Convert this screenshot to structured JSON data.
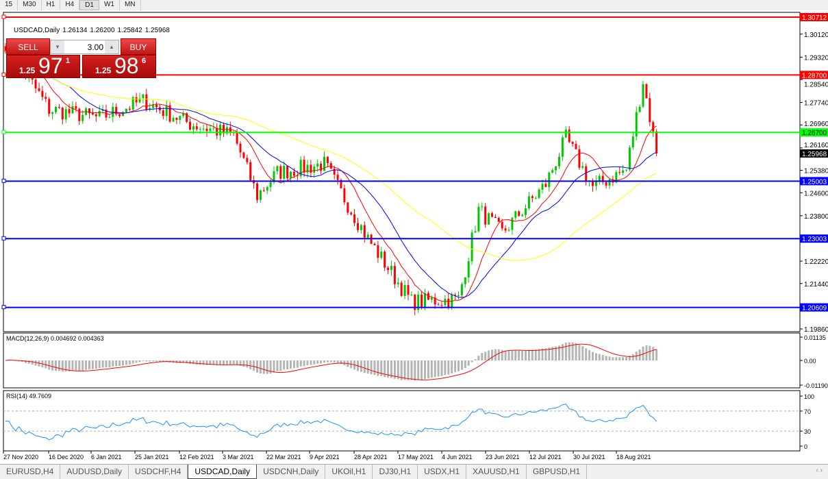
{
  "toolbar": {
    "timeframes": [
      {
        "label": "15"
      },
      {
        "label": "M30"
      },
      {
        "label": "H1"
      },
      {
        "label": "H4"
      },
      {
        "label": "D1",
        "active": true
      },
      {
        "label": "W1"
      },
      {
        "label": "MN"
      }
    ]
  },
  "chart": {
    "symbol": "USDCAD,Daily",
    "open": "1.26134",
    "high": "1.26200",
    "low": "1.25842",
    "close": "1.25968",
    "current_price": "1.25968",
    "price_axis": [
      "1.30120",
      "1.29320",
      "1.28540",
      "1.27740",
      "1.26960",
      "1.26160",
      "1.25380",
      "1.24600",
      "1.23800",
      "1.22220",
      "1.21440",
      "1.19860"
    ],
    "date_axis": [
      "27 Nov 2020",
      "16 Dec 2020",
      "6 Jan 2021",
      "25 Jan 2021",
      "12 Feb 2021",
      "3 Mar 2021",
      "22 Mar 2021",
      "9 Apr 2021",
      "28 Apr 2021",
      "17 May 2021",
      "4 Jun 2021",
      "23 Jun 2021",
      "12 Jul 2021",
      "30 Jul 2021",
      "18 Aug 2021"
    ],
    "levels": [
      {
        "price": "1.30712",
        "color": "#ff0000"
      },
      {
        "price": "1.28700",
        "color": "#ff0000"
      },
      {
        "price": "1.26700",
        "color": "#00ff00"
      },
      {
        "price": "1.25003",
        "color": "#0000ff"
      },
      {
        "price": "1.23003",
        "color": "#0000ff"
      },
      {
        "price": "1.20609",
        "color": "#0000ff"
      }
    ],
    "colors": {
      "bull": "#00c800",
      "bear": "#ff0000",
      "ma_fast": "#ff0000",
      "ma_mid": "#0000ff",
      "ma_slow": "#ffff00"
    }
  },
  "chart_data": {
    "type": "candlestick",
    "approx_close_by_date": [
      [
        "27 Nov 2020",
        1.298
      ],
      [
        "16 Dec 2020",
        1.275
      ],
      [
        "6 Jan 2021",
        1.272
      ],
      [
        "25 Jan 2021",
        1.278
      ],
      [
        "12 Feb 2021",
        1.27
      ],
      [
        "3 Mar 2021",
        1.266
      ],
      [
        "12 Mar 2021",
        1.245
      ],
      [
        "22 Mar 2021",
        1.253
      ],
      [
        "9 Apr 2021",
        1.256
      ],
      [
        "28 Apr 2021",
        1.23
      ],
      [
        "17 May 2021",
        1.208
      ],
      [
        "4 Jun 2021",
        1.209
      ],
      [
        "14 Jun 2021",
        1.24
      ],
      [
        "23 Jun 2021",
        1.232
      ],
      [
        "12 Jul 2021",
        1.249
      ],
      [
        "20 Jul 2021",
        1.265
      ],
      [
        "30 Jul 2021",
        1.248
      ],
      [
        "13 Aug 2021",
        1.254
      ],
      [
        "20 Aug 2021",
        1.285
      ],
      [
        "26 Aug 2021",
        1.2597
      ]
    ]
  },
  "trade": {
    "sell_label": "SELL",
    "buy_label": "BUY",
    "lot": "3.00",
    "sell": {
      "small": "1.25",
      "big": "97",
      "pip": "1"
    },
    "buy": {
      "small": "1.25",
      "big": "98",
      "pip": "6"
    }
  },
  "macd": {
    "label": "MACD(12,26,9) 0.004692 0.004363",
    "axis": [
      "0.01135",
      "0.00",
      "-0.01190"
    ]
  },
  "rsi": {
    "label": "RSI(14) 49.7609",
    "axis": [
      "100",
      "70",
      "30",
      "0"
    ]
  },
  "tabs": [
    {
      "label": "EURUSD,H4"
    },
    {
      "label": "AUDUSD,Daily"
    },
    {
      "label": "USDCHF,H4"
    },
    {
      "label": "USDCAD,Daily",
      "active": true
    },
    {
      "label": "USDCNH,Daily"
    },
    {
      "label": "UKOil,H1"
    },
    {
      "label": "DJ30,H1"
    },
    {
      "label": "USDX,H1"
    },
    {
      "label": "XAUUSD,H1"
    },
    {
      "label": "GBPUSD,H1"
    }
  ]
}
